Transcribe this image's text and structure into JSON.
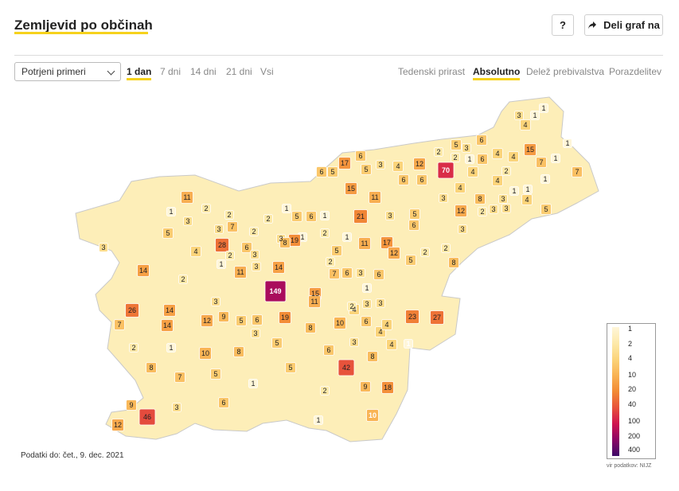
{
  "header": {
    "title": "Zemljevid po občinah",
    "help_label": "?",
    "share_label": "Deli graf na"
  },
  "controls": {
    "metric_select": "Potrjeni primeri",
    "time_tabs": [
      {
        "label": "1 dan",
        "active": true
      },
      {
        "label": "7 dni",
        "active": false
      },
      {
        "label": "14 dni",
        "active": false
      },
      {
        "label": "21 dni",
        "active": false
      },
      {
        "label": "Vsi",
        "active": false
      }
    ],
    "view_tabs": [
      {
        "label": "Tedenski prirast",
        "active": false
      },
      {
        "label": "Absolutno",
        "active": true
      },
      {
        "label": "Delež prebivalstva",
        "active": false
      },
      {
        "label": "Porazdelitev",
        "active": false
      }
    ]
  },
  "legend": {
    "labels": [
      "1",
      "2",
      "4",
      "10",
      "20",
      "40",
      "100",
      "200",
      "400"
    ],
    "colors": [
      "#fff6d9",
      "#fde9a8",
      "#fbd47a",
      "#f9b455",
      "#f28a35",
      "#e8553a",
      "#d01450",
      "#8d0664",
      "#3d0a68"
    ]
  },
  "footer": {
    "updated": "Podatki do: čet., 9. dec. 2021",
    "source": "vir podatkov: NIJZ"
  },
  "municipality_values": [
    1,
    3,
    1,
    4,
    1,
    2,
    5,
    6,
    3,
    4,
    15,
    7,
    1,
    2,
    1,
    2,
    70,
    4,
    6,
    4,
    7,
    17,
    6,
    5,
    3,
    4,
    6,
    5,
    12,
    6,
    6,
    4,
    15,
    11,
    3,
    8,
    4,
    1,
    11,
    2,
    1,
    3,
    2,
    3,
    2,
    7,
    1,
    2,
    5,
    6,
    1,
    21,
    3,
    5,
    12,
    2,
    3,
    3,
    4,
    5,
    1,
    1,
    3,
    3,
    5,
    3,
    3,
    2,
    1,
    19,
    11,
    17,
    6,
    1,
    28,
    6,
    4,
    2,
    3,
    5,
    12,
    14,
    1,
    2,
    8,
    5,
    11,
    3,
    2,
    14,
    7,
    6,
    3,
    6,
    2,
    2,
    8,
    149,
    15,
    1,
    3,
    4,
    26,
    14,
    3,
    11,
    2,
    3,
    23,
    27,
    7,
    14,
    12,
    9,
    5,
    6,
    19,
    8,
    10,
    6,
    4,
    4,
    3,
    2,
    1,
    10,
    8,
    3,
    5,
    6,
    8,
    42,
    4,
    1,
    8,
    7,
    5,
    1,
    5,
    2,
    9,
    18,
    9,
    46,
    3,
    12,
    6,
    10,
    1
  ]
}
